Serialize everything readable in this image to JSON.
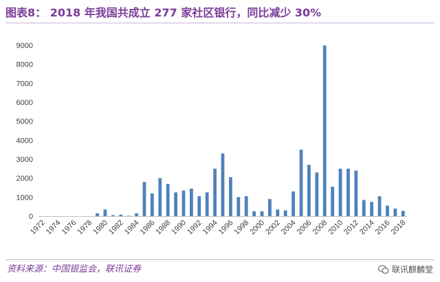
{
  "title": "图表8： 2018 年我国共成立 277 家社区银行，同比减少 30%",
  "source": "资料来源：中国银监会，联讯证券",
  "watermark": "联讯麒麟堂",
  "colors": {
    "bar": "#4f81bd",
    "axis": "#bfbfbf",
    "accent": "#7b3c98"
  },
  "chart_data": {
    "type": "bar",
    "title": "",
    "xlabel": "",
    "ylabel": "",
    "ylim": [
      0,
      9000
    ],
    "yticks": [
      0,
      1000,
      2000,
      3000,
      4000,
      5000,
      6000,
      7000,
      8000,
      9000
    ],
    "xticks": [
      "1972",
      "1974",
      "1976",
      "1978",
      "1980",
      "1982",
      "1984",
      "1986",
      "1988",
      "1990",
      "1992",
      "1994",
      "1996",
      "1998",
      "2000",
      "2002",
      "2004",
      "2006",
      "2008",
      "2010",
      "2012",
      "2014",
      "2016",
      "2018"
    ],
    "categories": [
      "1972",
      "1973",
      "1974",
      "1975",
      "1976",
      "1977",
      "1978",
      "1979",
      "1980",
      "1981",
      "1982",
      "1983",
      "1984",
      "1985",
      "1986",
      "1987",
      "1988",
      "1989",
      "1990",
      "1991",
      "1992",
      "1993",
      "1994",
      "1995",
      "1996",
      "1997",
      "1998",
      "1999",
      "2000",
      "2001",
      "2002",
      "2003",
      "2004",
      "2005",
      "2006",
      "2007",
      "2008",
      "2009",
      "2010",
      "2011",
      "2012",
      "2013",
      "2014",
      "2015",
      "2016",
      "2017",
      "2018"
    ],
    "values": [
      0,
      0,
      0,
      0,
      0,
      0,
      0,
      150,
      350,
      50,
      80,
      20,
      150,
      1800,
      1200,
      2000,
      1700,
      1250,
      1350,
      1450,
      1050,
      1250,
      2500,
      3300,
      2050,
      1000,
      1050,
      250,
      250,
      900,
      350,
      300,
      1300,
      3500,
      2700,
      2300,
      8990,
      1550,
      2500,
      2500,
      2400,
      850,
      750,
      1050,
      550,
      400,
      277
    ]
  }
}
